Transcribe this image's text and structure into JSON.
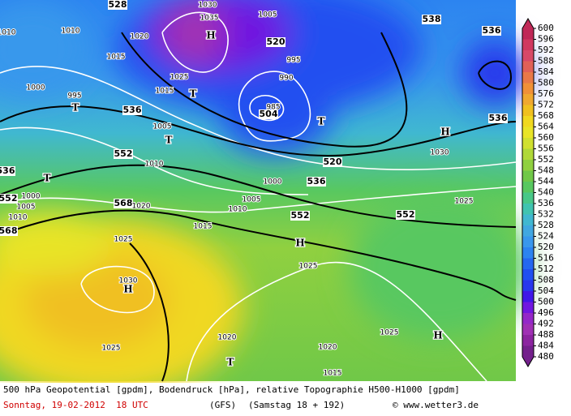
{
  "map": {
    "labels": [
      "528",
      "1030",
      "1035",
      "H",
      "1005",
      "520",
      "538",
      "536",
      "1010",
      "1010",
      "1020",
      "1015",
      "1000",
      "995",
      "T",
      "536",
      "1005",
      "T",
      "995",
      "990",
      "985",
      "504",
      "T",
      "T",
      "1025",
      "1015",
      "H",
      "536",
      "1030",
      "552",
      "1010",
      "536",
      "T",
      "520",
      "536",
      "1000",
      "1005",
      "1010",
      "552",
      "552",
      "1025",
      "552",
      "1000",
      "1005",
      "1010",
      "568",
      "1020",
      "568",
      "1015",
      "1025",
      "H",
      "1025",
      "1030",
      "H",
      "1025",
      "H",
      "1020",
      "1025",
      "1020",
      "T",
      "1015"
    ]
  },
  "colorbar": {
    "ticks": [
      600,
      596,
      592,
      588,
      584,
      580,
      576,
      572,
      568,
      564,
      560,
      556,
      552,
      548,
      544,
      540,
      536,
      532,
      528,
      524,
      520,
      516,
      512,
      508,
      504,
      500,
      496,
      492,
      488,
      484,
      480
    ],
    "colors": [
      "#c02858",
      "#d03860",
      "#d84868",
      "#e06058",
      "#e87848",
      "#f09038",
      "#f0a830",
      "#f0c020",
      "#f0d820",
      "#e8e428",
      "#d0e030",
      "#b0d838",
      "#90d040",
      "#70c848",
      "#58c860",
      "#48c888",
      "#40c4b0",
      "#40b8d0",
      "#40a8e0",
      "#3898ec",
      "#2c84f0",
      "#2468f0",
      "#2050f0",
      "#2838ec",
      "#4018e8",
      "#7018e0",
      "#9428c8",
      "#a030b4",
      "#8c24a0",
      "#74208c"
    ]
  },
  "footer": {
    "line1": "500 hPa Geopotential [gpdm], Bodendruck [hPa], relative Topographie H500-H1000 [gpdm]",
    "date": "Sonntag, 19-02-2012  18 UTC",
    "model": "(GFS)",
    "run": "(Samstag 18 + 192)",
    "site": "© www.wetter3.de"
  }
}
